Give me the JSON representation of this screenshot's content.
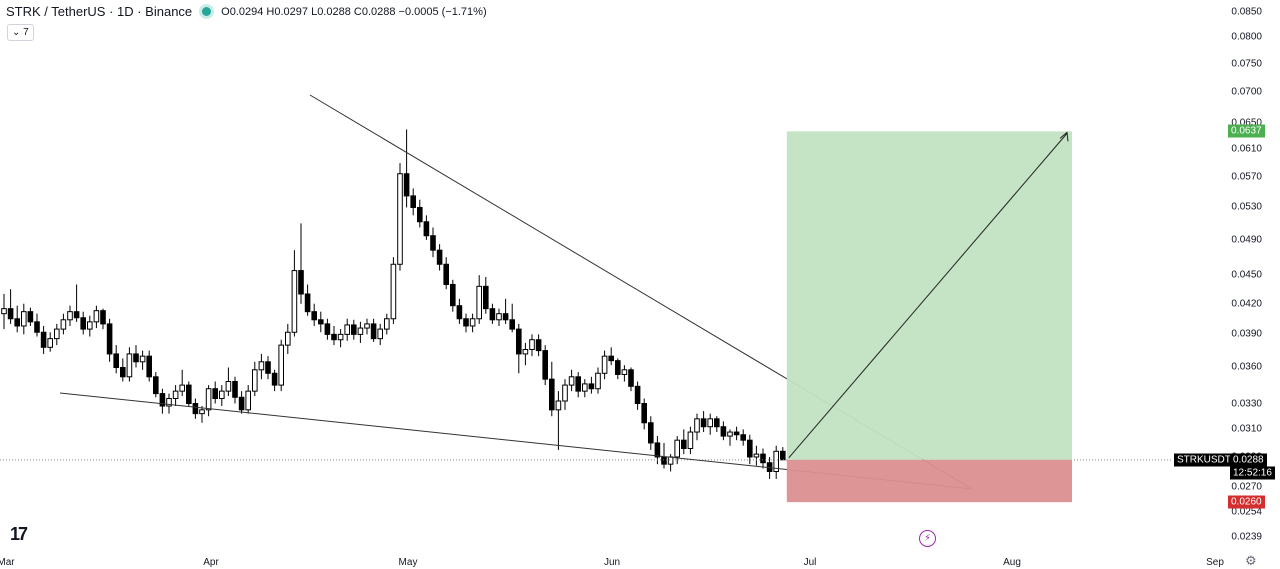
{
  "header": {
    "symbol": "STRK / TetherUS · 1D · Binance",
    "ohlc": "O0.0294 H0.0297 L0.0288 C0.0288 −0.0005 (−1.71%)",
    "indicator_count": "7"
  },
  "colors": {
    "up": "#ffffff",
    "down": "#000000",
    "target_zone": "#c2e3c2",
    "stop_zone": "#dc8f8f",
    "target_badge": "#4caf50",
    "stop_badge": "#d32f2f"
  },
  "chart_data": {
    "type": "candlestick",
    "y_axis": {
      "ticks": [
        "0.0850",
        "0.0800",
        "0.0750",
        "0.0700",
        "0.0650",
        "0.0610",
        "0.0570",
        "0.0530",
        "0.0490",
        "0.0450",
        "0.0420",
        "0.0390",
        "0.0360",
        "0.0330",
        "0.0310",
        "0.0290",
        "0.0270",
        "0.0254",
        "0.0239"
      ],
      "scale": "log"
    },
    "x_axis": {
      "ticks": [
        "Mar",
        "Apr",
        "May",
        "Jun",
        "Jul",
        "Aug",
        "Sep"
      ]
    },
    "last_price": {
      "symbol": "STRKUSDT",
      "value": "0.0288",
      "countdown": "12:52:16"
    },
    "target_price": "0.0637",
    "stop_price": "0.0260",
    "candles": [
      [
        0.041,
        0.043,
        0.0395,
        0.0415
      ],
      [
        0.0415,
        0.0435,
        0.04,
        0.0405
      ],
      [
        0.0405,
        0.0418,
        0.0392,
        0.0398
      ],
      [
        0.0398,
        0.042,
        0.039,
        0.0412
      ],
      [
        0.0412,
        0.0416,
        0.0398,
        0.0402
      ],
      [
        0.0402,
        0.041,
        0.0388,
        0.0392
      ],
      [
        0.0392,
        0.0398,
        0.0372,
        0.0378
      ],
      [
        0.0378,
        0.0392,
        0.0374,
        0.0386
      ],
      [
        0.0386,
        0.04,
        0.038,
        0.0395
      ],
      [
        0.0395,
        0.041,
        0.039,
        0.0404
      ],
      [
        0.0404,
        0.0418,
        0.0398,
        0.0412
      ],
      [
        0.0412,
        0.044,
        0.0402,
        0.0406
      ],
      [
        0.0406,
        0.0412,
        0.039,
        0.0395
      ],
      [
        0.0395,
        0.0408,
        0.0388,
        0.0402
      ],
      [
        0.0402,
        0.0418,
        0.0396,
        0.0413
      ],
      [
        0.0413,
        0.0415,
        0.0395,
        0.04
      ],
      [
        0.04,
        0.0405,
        0.0365,
        0.0372
      ],
      [
        0.0372,
        0.038,
        0.0355,
        0.036
      ],
      [
        0.036,
        0.0368,
        0.0348,
        0.0352
      ],
      [
        0.0352,
        0.0378,
        0.0348,
        0.0372
      ],
      [
        0.0372,
        0.038,
        0.036,
        0.0365
      ],
      [
        0.0365,
        0.0375,
        0.0358,
        0.037
      ],
      [
        0.037,
        0.0375,
        0.0348,
        0.0352
      ],
      [
        0.0352,
        0.0356,
        0.0335,
        0.0338
      ],
      [
        0.0338,
        0.0342,
        0.0322,
        0.0328
      ],
      [
        0.0328,
        0.0338,
        0.0322,
        0.0334
      ],
      [
        0.0334,
        0.0345,
        0.0328,
        0.034
      ],
      [
        0.034,
        0.0358,
        0.0336,
        0.0345
      ],
      [
        0.0345,
        0.0348,
        0.0328,
        0.033
      ],
      [
        0.033,
        0.0334,
        0.0318,
        0.0322
      ],
      [
        0.0322,
        0.0328,
        0.0315,
        0.0325
      ],
      [
        0.0325,
        0.0345,
        0.032,
        0.0342
      ],
      [
        0.0342,
        0.0348,
        0.033,
        0.0334
      ],
      [
        0.0334,
        0.0345,
        0.0328,
        0.034
      ],
      [
        0.034,
        0.036,
        0.0336,
        0.0348
      ],
      [
        0.0348,
        0.0352,
        0.033,
        0.0335
      ],
      [
        0.0335,
        0.034,
        0.0322,
        0.0325
      ],
      [
        0.0325,
        0.0345,
        0.0322,
        0.034
      ],
      [
        0.034,
        0.0365,
        0.0336,
        0.0358
      ],
      [
        0.0358,
        0.0372,
        0.035,
        0.0365
      ],
      [
        0.0365,
        0.037,
        0.035,
        0.0355
      ],
      [
        0.0355,
        0.0358,
        0.034,
        0.0345
      ],
      [
        0.0345,
        0.0385,
        0.034,
        0.038
      ],
      [
        0.038,
        0.04,
        0.0372,
        0.0392
      ],
      [
        0.0392,
        0.0478,
        0.0388,
        0.0455
      ],
      [
        0.0455,
        0.051,
        0.042,
        0.043
      ],
      [
        0.043,
        0.044,
        0.0408,
        0.0412
      ],
      [
        0.0412,
        0.042,
        0.0398,
        0.0404
      ],
      [
        0.0404,
        0.0412,
        0.0392,
        0.04
      ],
      [
        0.04,
        0.0405,
        0.0385,
        0.039
      ],
      [
        0.039,
        0.0398,
        0.038,
        0.0385
      ],
      [
        0.0385,
        0.0395,
        0.0378,
        0.039
      ],
      [
        0.039,
        0.0405,
        0.0384,
        0.0399
      ],
      [
        0.0399,
        0.0404,
        0.0385,
        0.039
      ],
      [
        0.039,
        0.0402,
        0.0382,
        0.0396
      ],
      [
        0.0396,
        0.0405,
        0.039,
        0.04
      ],
      [
        0.04,
        0.0405,
        0.0383,
        0.0386
      ],
      [
        0.0386,
        0.04,
        0.038,
        0.0395
      ],
      [
        0.0395,
        0.041,
        0.039,
        0.0405
      ],
      [
        0.0405,
        0.047,
        0.04,
        0.0462
      ],
      [
        0.0462,
        0.059,
        0.0455,
        0.0575
      ],
      [
        0.0575,
        0.064,
        0.053,
        0.0545
      ],
      [
        0.0545,
        0.0555,
        0.052,
        0.053
      ],
      [
        0.053,
        0.054,
        0.0505,
        0.0512
      ],
      [
        0.0512,
        0.052,
        0.049,
        0.0495
      ],
      [
        0.0495,
        0.0505,
        0.047,
        0.0478
      ],
      [
        0.0478,
        0.0485,
        0.0455,
        0.0462
      ],
      [
        0.0462,
        0.047,
        0.0435,
        0.044
      ],
      [
        0.044,
        0.0445,
        0.0412,
        0.0418
      ],
      [
        0.0418,
        0.0425,
        0.04,
        0.0405
      ],
      [
        0.0405,
        0.041,
        0.0392,
        0.0398
      ],
      [
        0.0398,
        0.041,
        0.0392,
        0.0405
      ],
      [
        0.0405,
        0.045,
        0.04,
        0.0438
      ],
      [
        0.0438,
        0.0448,
        0.041,
        0.0415
      ],
      [
        0.0415,
        0.042,
        0.04,
        0.0404
      ],
      [
        0.0404,
        0.0415,
        0.0398,
        0.041
      ],
      [
        0.041,
        0.0425,
        0.04,
        0.0404
      ],
      [
        0.0404,
        0.042,
        0.0392,
        0.0395
      ],
      [
        0.0395,
        0.04,
        0.0355,
        0.0372
      ],
      [
        0.0372,
        0.0382,
        0.0362,
        0.0376
      ],
      [
        0.0376,
        0.039,
        0.037,
        0.0385
      ],
      [
        0.0385,
        0.039,
        0.037,
        0.0375
      ],
      [
        0.0375,
        0.038,
        0.0345,
        0.035
      ],
      [
        0.035,
        0.0365,
        0.032,
        0.0325
      ],
      [
        0.0325,
        0.034,
        0.0295,
        0.0332
      ],
      [
        0.0332,
        0.035,
        0.0325,
        0.0345
      ],
      [
        0.0345,
        0.0358,
        0.034,
        0.0352
      ],
      [
        0.0352,
        0.0356,
        0.0335,
        0.034
      ],
      [
        0.034,
        0.035,
        0.0335,
        0.0346
      ],
      [
        0.0346,
        0.0352,
        0.0338,
        0.0342
      ],
      [
        0.0342,
        0.036,
        0.0338,
        0.0355
      ],
      [
        0.0355,
        0.0375,
        0.035,
        0.037
      ],
      [
        0.037,
        0.0378,
        0.0362,
        0.0366
      ],
      [
        0.0366,
        0.0368,
        0.035,
        0.0354
      ],
      [
        0.0354,
        0.0362,
        0.0348,
        0.0358
      ],
      [
        0.0358,
        0.036,
        0.034,
        0.0344
      ],
      [
        0.0344,
        0.0348,
        0.0325,
        0.033
      ],
      [
        0.033,
        0.0334,
        0.031,
        0.0315
      ],
      [
        0.0315,
        0.032,
        0.0295,
        0.03
      ],
      [
        0.03,
        0.0305,
        0.0285,
        0.029
      ],
      [
        0.029,
        0.03,
        0.0282,
        0.0285
      ],
      [
        0.0285,
        0.0292,
        0.028,
        0.029
      ],
      [
        0.029,
        0.0305,
        0.0285,
        0.0302
      ],
      [
        0.0302,
        0.031,
        0.0292,
        0.0296
      ],
      [
        0.0296,
        0.0312,
        0.0292,
        0.0308
      ],
      [
        0.0308,
        0.0322,
        0.0302,
        0.0318
      ],
      [
        0.0318,
        0.0324,
        0.0308,
        0.0312
      ],
      [
        0.0312,
        0.0322,
        0.0306,
        0.0318
      ],
      [
        0.0318,
        0.032,
        0.0308,
        0.0312
      ],
      [
        0.0312,
        0.0316,
        0.0302,
        0.0305
      ],
      [
        0.0305,
        0.031,
        0.0298,
        0.0308
      ],
      [
        0.0308,
        0.0312,
        0.0302,
        0.0306
      ],
      [
        0.0306,
        0.031,
        0.0298,
        0.0302
      ],
      [
        0.0302,
        0.0306,
        0.0285,
        0.029
      ],
      [
        0.029,
        0.0298,
        0.0284,
        0.0292
      ],
      [
        0.0292,
        0.0296,
        0.0282,
        0.0286
      ],
      [
        0.0286,
        0.029,
        0.0275,
        0.028
      ],
      [
        0.028,
        0.0298,
        0.0275,
        0.0294
      ],
      [
        0.0294,
        0.0297,
        0.0288,
        0.0288
      ]
    ]
  }
}
